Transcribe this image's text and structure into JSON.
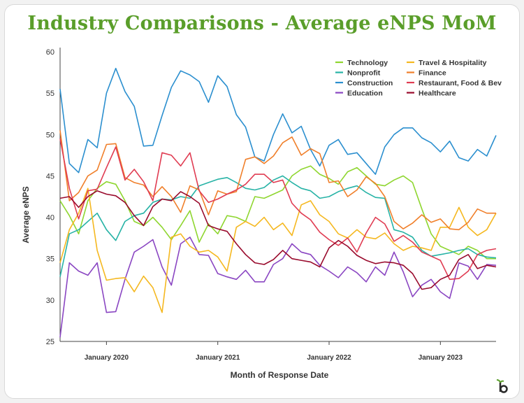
{
  "chart_data": {
    "type": "line",
    "title": "Industry Comparisons - Average eNPS MoM",
    "xlabel": "Month of Response Date",
    "ylabel": "Average eNPS",
    "ylim": [
      25,
      60
    ],
    "yticks": [
      25,
      30,
      35,
      40,
      45,
      50,
      55,
      60
    ],
    "x_start": "2019-08",
    "x_months": 48,
    "x_ticks": [
      {
        "label": "January 2020",
        "index": 5
      },
      {
        "label": "January 2021",
        "index": 17
      },
      {
        "label": "January 2022",
        "index": 29
      },
      {
        "label": "January 2023",
        "index": 41
      }
    ],
    "grid": false,
    "legend_position": "top-right",
    "series": [
      {
        "name": "Technology",
        "color": "#8fd630",
        "values": [
          42,
          40.2,
          38,
          42,
          43.5,
          44.3,
          44,
          42,
          39.5,
          39,
          40,
          38.8,
          37.3,
          39,
          40.8,
          37,
          39.2,
          38,
          40.2,
          40,
          39.5,
          42.5,
          42.3,
          42.8,
          43.3,
          45,
          45.8,
          46.2,
          45.2,
          44.7,
          44,
          45.5,
          46,
          45,
          44,
          43.8,
          44.5,
          45,
          44.2,
          41,
          38,
          36.5,
          36,
          35.5,
          36.5,
          36,
          35,
          35
        ]
      },
      {
        "name": "Nonprofit",
        "color": "#27b3a6",
        "values": [
          32.8,
          38,
          38.5,
          39.5,
          40.5,
          38.5,
          37.2,
          39.5,
          40.2,
          40.5,
          41.8,
          42.2,
          42.1,
          42.5,
          42.3,
          43.8,
          44.2,
          44.6,
          44.8,
          44.2,
          43.5,
          43.3,
          43.6,
          44.5,
          45,
          44.2,
          43.5,
          43.2,
          42.3,
          42.5,
          43.1,
          43.5,
          43.8,
          43,
          42.4,
          42.3,
          38.5,
          38.2,
          37.6,
          36,
          35.3,
          35.5,
          35.7,
          36,
          36.2,
          35.5,
          35.2,
          35.1
        ]
      },
      {
        "name": "Construction",
        "color": "#2b8fcf",
        "values": [
          55.5,
          46.5,
          45.4,
          49.4,
          48.4,
          55,
          58,
          55.2,
          53.4,
          48.6,
          48.7,
          52.3,
          55.7,
          57.7,
          57.2,
          56.4,
          53.9,
          57.1,
          55.8,
          52.4,
          50.9,
          47.3,
          46.8,
          50,
          52.5,
          50.2,
          51,
          48.2,
          46.2,
          48.7,
          49.4,
          47.6,
          47.8,
          46.5,
          45.2,
          48.5,
          50,
          50.8,
          50.8,
          49.6,
          49,
          47.9,
          49.2,
          47.2,
          46.8,
          48.2,
          47.4,
          49.9
        ]
      },
      {
        "name": "Education",
        "color": "#8a46c2",
        "values": [
          25.5,
          34.5,
          33.5,
          33,
          34.5,
          28.5,
          28.6,
          32.5,
          35.8,
          36.5,
          37.3,
          34,
          31.8,
          36.8,
          37.6,
          35.5,
          35.4,
          33.2,
          32.8,
          32.5,
          33.6,
          32.2,
          32.2,
          34.3,
          35,
          36.8,
          35.8,
          35.5,
          34.2,
          33.5,
          32.7,
          34,
          33.3,
          32.2,
          34,
          33,
          35.8,
          33.4,
          30.4,
          31.8,
          32.5,
          31,
          30.2,
          34.5,
          34.1,
          32.5,
          34.3,
          34.2
        ]
      },
      {
        "name": "Travel & Hospitality",
        "color": "#f5b820",
        "values": [
          34.5,
          38.5,
          40.5,
          43.5,
          36,
          32.4,
          32.6,
          32.7,
          31,
          32.9,
          31.5,
          28.5,
          37.6,
          38,
          36.5,
          35.8,
          36,
          35.2,
          33.5,
          38.8,
          39.5,
          38.9,
          40,
          38.5,
          39.3,
          37.8,
          41.5,
          42,
          40.3,
          39.5,
          38,
          37.5,
          38.5,
          37.6,
          37.4,
          38.1,
          36.8,
          36,
          36.5,
          36.3,
          36,
          38.8,
          38.8,
          41.2,
          38.8,
          37.8,
          38.5,
          40.5
        ]
      },
      {
        "name": "Finance",
        "color": "#f07f2a",
        "values": [
          50.5,
          42,
          43,
          45,
          45.7,
          48.8,
          48.9,
          44.8,
          44.2,
          43.9,
          42.5,
          43.7,
          42.5,
          40.6,
          43.8,
          43.3,
          40.3,
          43.2,
          42.8,
          43.1,
          47,
          47.3,
          46.5,
          47.4,
          49,
          49.7,
          47.5,
          48.3,
          47.7,
          44.2,
          44.4,
          42.5,
          43.3,
          44.9,
          44.1,
          42.5,
          39.5,
          38.6,
          39.3,
          40.3,
          39.4,
          39.8,
          38.6,
          38.5,
          39.4,
          41,
          40.5,
          40.5
        ]
      },
      {
        "name": "Restaurant, Food & Bev",
        "color": "#e03c52",
        "values": [
          49.5,
          43.5,
          39.8,
          43.2,
          43.4,
          46,
          48.5,
          44.5,
          45.8,
          44.3,
          42,
          47.8,
          47.5,
          46.2,
          47.8,
          43.2,
          41.8,
          42.2,
          42.8,
          43.3,
          44,
          45.2,
          45.2,
          44.2,
          44.5,
          41.7,
          40.5,
          39.7,
          38.2,
          37.3,
          36.6,
          37.5,
          35.8,
          38.1,
          40,
          39.2,
          37.1,
          37.8,
          37,
          35.8,
          35.3,
          34.8,
          32.5,
          32.6,
          33.5,
          35.5,
          36,
          36.2
        ]
      },
      {
        "name": "Healthcare",
        "color": "#990a2c",
        "values": [
          42.3,
          42.5,
          41.2,
          42.5,
          43.2,
          42.8,
          42.6,
          41.8,
          40.2,
          39,
          41.3,
          42.2,
          42,
          43.1,
          42.5,
          41.7,
          39,
          38.6,
          38.3,
          36.8,
          35.5,
          34.5,
          34.3,
          34.9,
          36,
          35,
          34.8,
          34.6,
          34,
          36.3,
          37.2,
          36.5,
          35.4,
          34.8,
          34.4,
          34.6,
          34.5,
          34.2,
          33.2,
          31.3,
          31.5,
          32.5,
          33,
          34.9,
          35.5,
          33.8,
          34.2,
          34
        ]
      }
    ]
  }
}
